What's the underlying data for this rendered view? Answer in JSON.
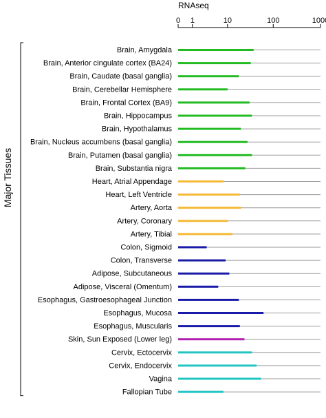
{
  "chart_data": {
    "type": "bar",
    "orientation": "horizontal",
    "title": "RNAseq",
    "xscale": "log(1+x)",
    "xlim": [
      0,
      1000
    ],
    "xticks": [
      0,
      1,
      10,
      100,
      1000
    ],
    "xtick_labels": [
      "0",
      "1",
      "10",
      "100",
      "1000"
    ],
    "ylabel": "Major Tissues",
    "grid": false,
    "legend": "none",
    "categories": [
      "Brain, Amygdala",
      "Brain, Anterior cingulate cortex (BA24)",
      "Brain, Caudate (basal ganglia)",
      "Brain, Cerebellar Hemisphere",
      "Brain, Frontal Cortex (BA9)",
      "Brain, Hippocampus",
      "Brain, Hypothalamus",
      "Brain, Nucleus accumbens (basal ganglia)",
      "Brain, Putamen (basal ganglia)",
      "Brain, Substantia nigra",
      "Heart, Atrial Appendage",
      "Heart, Left Ventricle",
      "Artery, Aorta",
      "Artery, Coronary",
      "Artery, Tibial",
      "Colon, Sigmoid",
      "Colon, Transverse",
      "Adipose, Subcutaneous",
      "Adipose, Visceral (Omentum)",
      "Esophagus, Gastroesophageal Junction",
      "Esophagus, Mucosa",
      "Esophagus, Muscularis",
      "Skin, Sun Exposed (Lower leg)",
      "Cervix, Ectocervix",
      "Cervix, Endocervix",
      "Vagina",
      "Fallopian Tube"
    ],
    "values": [
      38,
      33,
      18,
      10,
      31,
      35,
      20,
      28,
      35,
      25,
      8,
      19,
      20,
      10,
      13,
      3,
      9,
      11,
      6,
      18,
      62,
      19,
      24,
      35,
      44,
      55,
      8
    ],
    "colors": [
      "#22bb22",
      "#22bb22",
      "#22bb22",
      "#22bb22",
      "#22bb22",
      "#22bb22",
      "#22bb22",
      "#22bb22",
      "#22bb22",
      "#22bb22",
      "#f5b935",
      "#f5b935",
      "#f5b935",
      "#f5b935",
      "#f5b935",
      "#1a1aa8",
      "#1a1aa8",
      "#1a1aa8",
      "#1a1aa8",
      "#1a1aa8",
      "#1a1aa8",
      "#1a1aa8",
      "#b11fb1",
      "#22c4c4",
      "#22c4c4",
      "#22c4c4",
      "#22c4c4"
    ],
    "baseline_color": "#999999"
  }
}
